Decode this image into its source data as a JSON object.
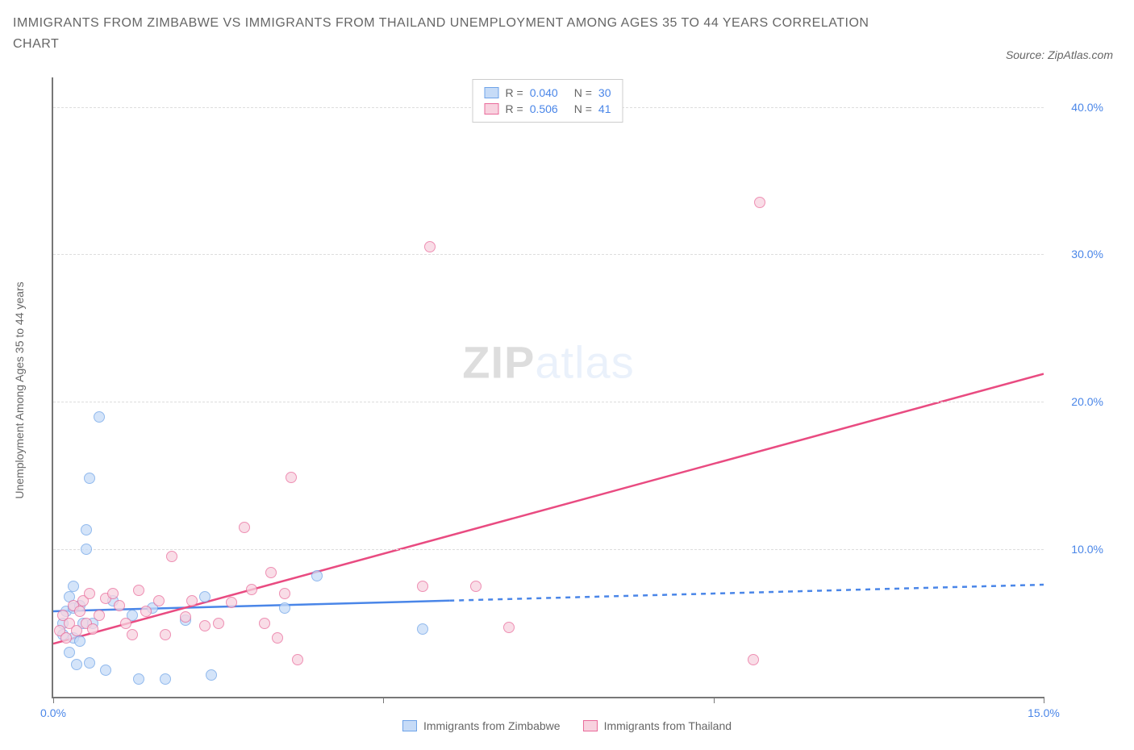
{
  "chart": {
    "type": "scatter",
    "title": "IMMIGRANTS FROM ZIMBABWE VS IMMIGRANTS FROM THAILAND UNEMPLOYMENT AMONG AGES 35 TO 44 YEARS CORRELATION CHART",
    "source_label": "Source: ZipAtlas.com",
    "ylabel": "Unemployment Among Ages 35 to 44 years",
    "x_axis": {
      "min": 0,
      "max": 15,
      "ticks": [
        0,
        5,
        10,
        15
      ],
      "tick_labels": [
        "0.0%",
        "",
        "",
        "15.0%"
      ]
    },
    "y_axis": {
      "min": 0,
      "max": 42,
      "gridlines": [
        10,
        20,
        30,
        40
      ],
      "tick_labels": [
        "10.0%",
        "20.0%",
        "30.0%",
        "40.0%"
      ]
    },
    "background_color": "#ffffff",
    "grid_color": "#dddddd",
    "axis_color": "#777777",
    "watermark": {
      "text_a": "ZIP",
      "text_b": "atlas"
    },
    "series": [
      {
        "name": "Immigrants from Zimbabwe",
        "color_fill": "#c6dbf7",
        "color_stroke": "#6ea3e8",
        "point_radius": 7,
        "R": "0.040",
        "N": "30",
        "trend": {
          "slope": 0.12,
          "intercept": 5.8,
          "solid_until_x": 6.0,
          "color": "#4a86e8"
        },
        "points": [
          [
            0.15,
            4.2
          ],
          [
            0.15,
            5.0
          ],
          [
            0.2,
            5.8
          ],
          [
            0.25,
            3.0
          ],
          [
            0.3,
            4.0
          ],
          [
            0.3,
            6.0
          ],
          [
            0.3,
            7.5
          ],
          [
            0.35,
            2.2
          ],
          [
            0.4,
            6.2
          ],
          [
            0.4,
            3.8
          ],
          [
            0.45,
            5.0
          ],
          [
            0.5,
            11.3
          ],
          [
            0.5,
            10.0
          ],
          [
            0.55,
            14.8
          ],
          [
            0.55,
            2.3
          ],
          [
            0.6,
            5.0
          ],
          [
            0.7,
            19.0
          ],
          [
            0.8,
            1.8
          ],
          [
            0.9,
            6.5
          ],
          [
            1.2,
            5.5
          ],
          [
            1.3,
            1.2
          ],
          [
            1.5,
            6.0
          ],
          [
            1.7,
            1.2
          ],
          [
            2.0,
            5.2
          ],
          [
            2.3,
            6.8
          ],
          [
            2.4,
            1.5
          ],
          [
            3.5,
            6.0
          ],
          [
            4.0,
            8.2
          ],
          [
            5.6,
            4.6
          ],
          [
            0.25,
            6.8
          ]
        ]
      },
      {
        "name": "Immigrants from Thailand",
        "color_fill": "#f8d2df",
        "color_stroke": "#e96a9a",
        "point_radius": 7,
        "R": "0.506",
        "N": "41",
        "trend": {
          "slope": 1.22,
          "intercept": 3.6,
          "solid_until_x": 15.0,
          "color": "#e94b81"
        },
        "points": [
          [
            0.1,
            4.5
          ],
          [
            0.15,
            5.5
          ],
          [
            0.2,
            4.0
          ],
          [
            0.25,
            5.0
          ],
          [
            0.3,
            6.2
          ],
          [
            0.35,
            4.5
          ],
          [
            0.4,
            5.8
          ],
          [
            0.45,
            6.5
          ],
          [
            0.5,
            5.0
          ],
          [
            0.55,
            7.0
          ],
          [
            0.6,
            4.6
          ],
          [
            0.7,
            5.5
          ],
          [
            0.8,
            6.7
          ],
          [
            0.9,
            7.0
          ],
          [
            1.0,
            6.2
          ],
          [
            1.1,
            5.0
          ],
          [
            1.2,
            4.2
          ],
          [
            1.3,
            7.2
          ],
          [
            1.4,
            5.8
          ],
          [
            1.6,
            6.5
          ],
          [
            1.7,
            4.2
          ],
          [
            1.8,
            9.5
          ],
          [
            2.0,
            5.4
          ],
          [
            2.1,
            6.5
          ],
          [
            2.3,
            4.8
          ],
          [
            2.5,
            5.0
          ],
          [
            2.7,
            6.4
          ],
          [
            2.9,
            11.5
          ],
          [
            3.0,
            7.3
          ],
          [
            3.2,
            5.0
          ],
          [
            3.3,
            8.4
          ],
          [
            3.4,
            4.0
          ],
          [
            3.5,
            7.0
          ],
          [
            3.6,
            14.9
          ],
          [
            3.7,
            2.5
          ],
          [
            5.6,
            7.5
          ],
          [
            5.7,
            30.5
          ],
          [
            6.4,
            7.5
          ],
          [
            6.9,
            4.7
          ],
          [
            10.6,
            2.5
          ],
          [
            10.7,
            33.5
          ]
        ]
      }
    ],
    "stats_legend": {
      "r_label": "R =",
      "n_label": "N =",
      "value_color": "#4a86e8"
    },
    "bottom_legend": {
      "items": [
        "Immigrants from Zimbabwe",
        "Immigrants from Thailand"
      ]
    }
  }
}
